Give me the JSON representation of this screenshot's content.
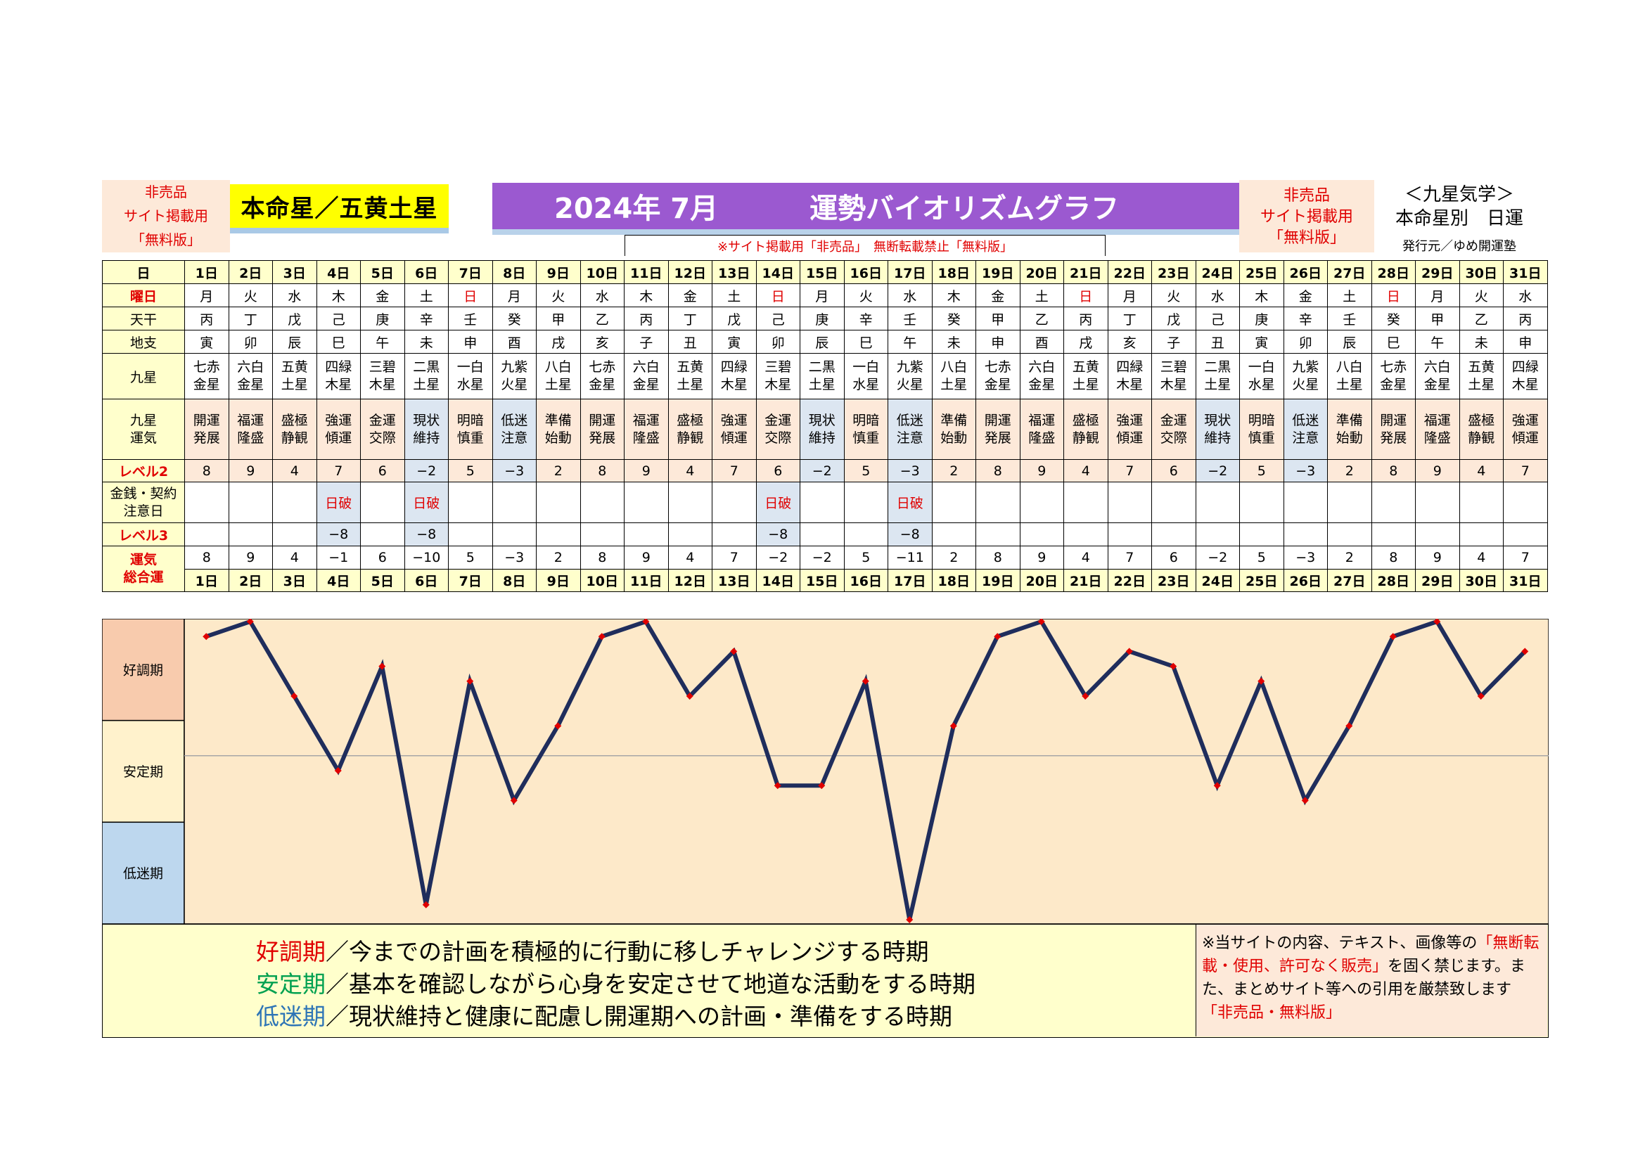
{
  "header": {
    "left_lines": [
      "非売品",
      "サイト掲載用",
      "「無料版」"
    ],
    "honmei": "本命星／五黄土星",
    "title_date": "2024年 7月",
    "title_name": "運勢バイオリズムグラフ",
    "right_lines": [
      "非売品",
      "サイト掲載用",
      "「無料版」"
    ],
    "kyusei_lines": [
      "＜九星気学＞",
      "本命星別　日運"
    ],
    "publisher": "発行元／ゆめ開運塾",
    "notice": "※サイト掲載用「非売品」　無断転載禁止「無料版」"
  },
  "row_labels": {
    "day": "日",
    "yobi": "曜日",
    "kan": "天干",
    "shi": "地支",
    "kyu": "九星",
    "unki": [
      "九星",
      "運気"
    ],
    "lv2": "レベル2",
    "kin": [
      "金銭・契約",
      "注意日"
    ],
    "lv3": "レベル3",
    "total": [
      "運気",
      "総合運"
    ]
  },
  "table": {
    "days": [
      "1日",
      "2日",
      "3日",
      "4日",
      "5日",
      "6日",
      "7日",
      "8日",
      "9日",
      "10日",
      "11日",
      "12日",
      "13日",
      "14日",
      "15日",
      "16日",
      "17日",
      "18日",
      "19日",
      "20日",
      "21日",
      "22日",
      "23日",
      "24日",
      "25日",
      "26日",
      "27日",
      "28日",
      "29日",
      "30日",
      "31日"
    ],
    "yobi": [
      "月",
      "火",
      "水",
      "木",
      "金",
      "土",
      "日",
      "月",
      "火",
      "水",
      "木",
      "金",
      "土",
      "日",
      "月",
      "火",
      "水",
      "木",
      "金",
      "土",
      "日",
      "月",
      "火",
      "水",
      "木",
      "金",
      "土",
      "日",
      "月",
      "火",
      "水"
    ],
    "kan": [
      "丙",
      "丁",
      "戊",
      "己",
      "庚",
      "辛",
      "壬",
      "癸",
      "甲",
      "乙",
      "丙",
      "丁",
      "戊",
      "己",
      "庚",
      "辛",
      "壬",
      "癸",
      "甲",
      "乙",
      "丙",
      "丁",
      "戊",
      "己",
      "庚",
      "辛",
      "壬",
      "癸",
      "甲",
      "乙",
      "丙"
    ],
    "shi": [
      "寅",
      "卯",
      "辰",
      "巳",
      "午",
      "未",
      "申",
      "酉",
      "戌",
      "亥",
      "子",
      "丑",
      "寅",
      "卯",
      "辰",
      "巳",
      "午",
      "未",
      "申",
      "酉",
      "戌",
      "亥",
      "子",
      "丑",
      "寅",
      "卯",
      "辰",
      "巳",
      "午",
      "未",
      "申"
    ],
    "kyu1": [
      "七赤",
      "六白",
      "五黄",
      "四緑",
      "三碧",
      "二黒",
      "一白",
      "九紫",
      "八白",
      "七赤",
      "六白",
      "五黄",
      "四緑",
      "三碧",
      "二黒",
      "一白",
      "九紫",
      "八白",
      "七赤",
      "六白",
      "五黄",
      "四緑",
      "三碧",
      "二黒",
      "一白",
      "九紫",
      "八白",
      "七赤",
      "六白",
      "五黄",
      "四緑"
    ],
    "kyu2": [
      "金星",
      "金星",
      "土星",
      "木星",
      "木星",
      "土星",
      "水星",
      "火星",
      "土星",
      "金星",
      "金星",
      "土星",
      "木星",
      "木星",
      "土星",
      "水星",
      "火星",
      "土星",
      "金星",
      "金星",
      "土星",
      "木星",
      "木星",
      "土星",
      "水星",
      "火星",
      "土星",
      "金星",
      "金星",
      "土星",
      "木星"
    ],
    "unki1": [
      "開運",
      "福運",
      "盛極",
      "強運",
      "金運",
      "現状",
      "明暗",
      "低迷",
      "準備",
      "開運",
      "福運",
      "盛極",
      "強運",
      "金運",
      "現状",
      "明暗",
      "低迷",
      "準備",
      "開運",
      "福運",
      "盛極",
      "強運",
      "金運",
      "現状",
      "明暗",
      "低迷",
      "準備",
      "開運",
      "福運",
      "盛極",
      "強運"
    ],
    "unki2": [
      "発展",
      "隆盛",
      "静観",
      "傾運",
      "交際",
      "維持",
      "慎重",
      "注意",
      "始動",
      "発展",
      "隆盛",
      "静観",
      "傾運",
      "交際",
      "維持",
      "慎重",
      "注意",
      "始動",
      "発展",
      "隆盛",
      "静観",
      "傾運",
      "交際",
      "維持",
      "慎重",
      "注意",
      "始動",
      "発展",
      "隆盛",
      "静観",
      "傾運"
    ],
    "lv2": [
      "8",
      "9",
      "4",
      "7",
      "6",
      "−2",
      "5",
      "−3",
      "2",
      "8",
      "9",
      "4",
      "7",
      "6",
      "−2",
      "5",
      "−3",
      "2",
      "8",
      "9",
      "4",
      "7",
      "6",
      "−2",
      "5",
      "−3",
      "2",
      "8",
      "9",
      "4",
      "7"
    ],
    "kin": [
      "",
      "",
      "",
      "日破",
      "",
      "日破",
      "",
      "",
      "",
      "",
      "",
      "",
      "",
      "日破",
      "",
      "",
      "日破",
      "",
      "",
      "",
      "",
      "",
      "",
      "",
      "",
      "",
      "",
      "",
      "",
      "",
      ""
    ],
    "lv3": [
      "",
      "",
      "",
      "−8",
      "",
      "−8",
      "",
      "",
      "",
      "",
      "",
      "",
      "",
      "−8",
      "",
      "",
      "−8",
      "",
      "",
      "",
      "",
      "",
      "",
      "",
      "",
      "",
      "",
      "",
      "",
      "",
      ""
    ],
    "total": [
      "8",
      "9",
      "4",
      "−1",
      "6",
      "−10",
      "5",
      "−3",
      "2",
      "8",
      "9",
      "4",
      "7",
      "−2",
      "−2",
      "5",
      "−11",
      "2",
      "8",
      "9",
      "4",
      "7",
      "6",
      "−2",
      "5",
      "−3",
      "2",
      "8",
      "9",
      "4",
      "7"
    ]
  },
  "colors": {
    "line": "#1f2d5c",
    "marker": "#e00000",
    "good_band": "#f8cbad",
    "stable_band": "#fff2cc",
    "low_band": "#bdd7ee",
    "plot_bg": "#fde9c9",
    "red_text": "#e00000",
    "good_text": "#e00000",
    "stable_text": "#00a050",
    "low_text": "#2e75b6",
    "title_purple": "#9b59d0",
    "honmei_yellow": "#ffff00"
  },
  "chart_data": {
    "type": "line",
    "x": [
      "1日",
      "2日",
      "3日",
      "4日",
      "5日",
      "6日",
      "7日",
      "8日",
      "9日",
      "10日",
      "11日",
      "12日",
      "13日",
      "14日",
      "15日",
      "16日",
      "17日",
      "18日",
      "19日",
      "20日",
      "21日",
      "22日",
      "23日",
      "24日",
      "25日",
      "26日",
      "27日",
      "28日",
      "29日",
      "30日",
      "31日"
    ],
    "series": [
      {
        "values": [
          8,
          9,
          4,
          -1,
          6,
          -10,
          5,
          -3,
          2,
          8,
          9,
          4,
          7,
          -2,
          -2,
          5,
          -11,
          2,
          8,
          9,
          4,
          7,
          6,
          -2,
          5,
          -3,
          2,
          8,
          9,
          4,
          7
        ]
      }
    ],
    "ylim": [
      -11,
      9
    ],
    "reference_line": 0,
    "bands": [
      "好調期",
      "安定期",
      "低迷期"
    ]
  },
  "legend": {
    "good_term": "好調期",
    "good_text": "／今までの計画を積極的に行動に移しチャレンジする時期",
    "stable_term": "安定期",
    "stable_text": "／基本を確認しながら心身を安定させて地道な活動をする時期",
    "low_term": "低迷期",
    "low_text": "／現状維持と健康に配慮し開運期への計画・準備をする時期",
    "note_1": "※当サイトの内容、テキスト、画像等の",
    "note_red": "「無断転載・使用、許可なく販売」",
    "note_2": "を固く禁じます。また、まとめサイト等への引用を厳禁致します",
    "note_red2": "「非売品・無料版」"
  }
}
